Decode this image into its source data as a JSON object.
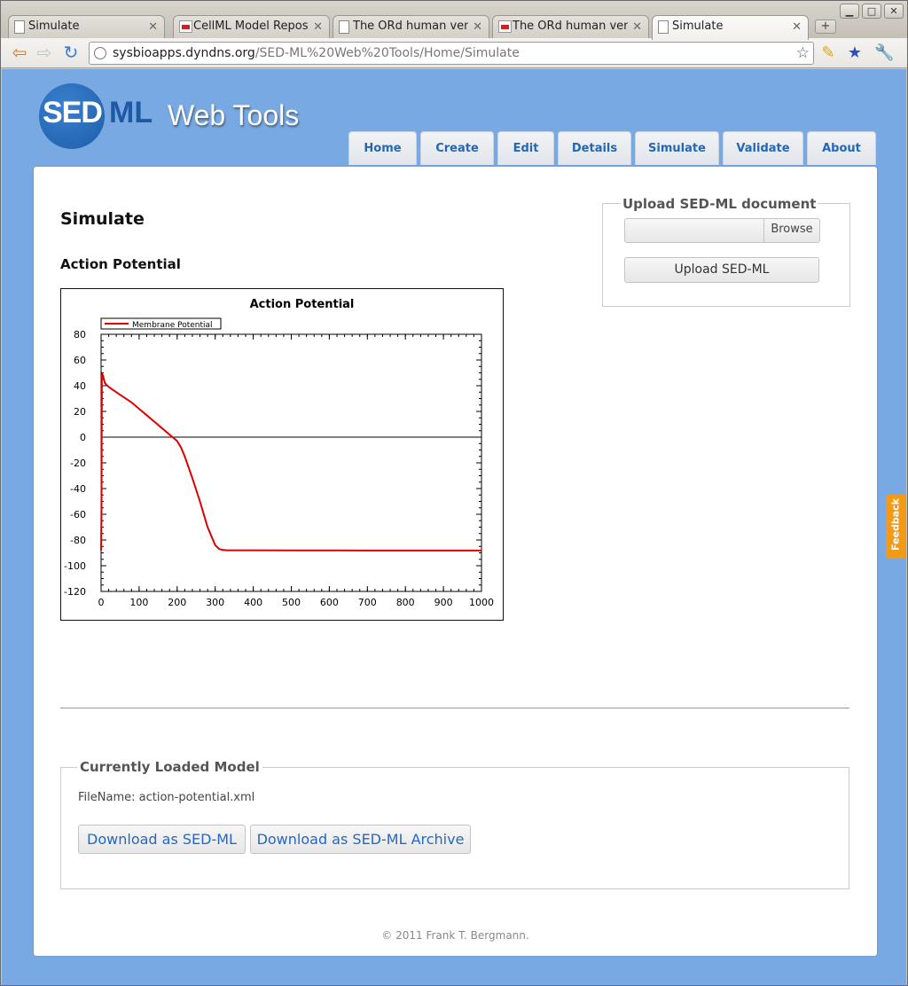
{
  "browser": {
    "tabs": [
      {
        "title": "Simulate",
        "icon": "page-icon"
      },
      {
        "title": "CellML Model Repository",
        "icon": "cellml-icon"
      },
      {
        "title": "The ORd human ventricular",
        "icon": "page-icon"
      },
      {
        "title": "The ORd human ventricular",
        "icon": "cellml-icon"
      },
      {
        "title": "Simulate",
        "icon": "page-icon"
      }
    ],
    "new_tab_label": "+",
    "address": {
      "host": "sysbioapps.dyndns.org",
      "path": "/SED-ML%20Web%20Tools/Home/Simulate"
    }
  },
  "site": {
    "logo_sed": "SED",
    "logo_ml": "ML",
    "logo_webtools": "Web Tools",
    "nav": [
      {
        "label": "Home"
      },
      {
        "label": "Create"
      },
      {
        "label": "Edit"
      },
      {
        "label": "Details"
      },
      {
        "label": "Simulate"
      },
      {
        "label": "Validate"
      },
      {
        "label": "About"
      }
    ]
  },
  "main": {
    "page_title": "Simulate",
    "chart_heading": "Action Potential"
  },
  "upload": {
    "legend": "Upload SED-ML document",
    "browse_label": "Browse",
    "button_label": "Upload SED-ML"
  },
  "model": {
    "legend": "Currently Loaded Model",
    "filename_label": "FileName:",
    "filename": "action-potential.xml",
    "download_sedml": "Download as SED-ML",
    "download_archive": "Download as SED-ML Archive"
  },
  "footer": "© 2011 Frank T. Bergmann.",
  "feedback_label": "Feedback",
  "colors": {
    "background": "#79a9e3",
    "nav_text": "#2467b4",
    "series": "#dd0000",
    "feedback": "#f39b16"
  },
  "chart_data": {
    "type": "line",
    "title": "Action Potential",
    "xlabel": "",
    "ylabel": "",
    "xlim": [
      0,
      1000
    ],
    "ylim": [
      -120,
      80
    ],
    "xticks": [
      0,
      100,
      200,
      300,
      400,
      500,
      600,
      700,
      800,
      900,
      1000
    ],
    "yticks": [
      80,
      60,
      40,
      20,
      0,
      -20,
      -40,
      -60,
      -80,
      -100,
      -120
    ],
    "legend": "top-left",
    "series": [
      {
        "name": "Membrane Potential",
        "color": "#dd0000",
        "x": [
          0,
          1,
          2,
          3,
          5,
          10,
          20,
          40,
          60,
          80,
          100,
          120,
          140,
          160,
          180,
          200,
          210,
          220,
          240,
          260,
          280,
          300,
          310,
          320,
          330,
          350,
          400,
          500,
          600,
          700,
          800,
          900,
          1000
        ],
        "y": [
          -88,
          -60,
          47,
          49,
          48,
          42,
          39,
          35,
          31,
          27,
          22,
          17,
          12,
          7,
          2,
          -3,
          -8,
          -15,
          -32,
          -50,
          -70,
          -84,
          -87,
          -87.8,
          -88,
          -88,
          -88,
          -88.1,
          -88.1,
          -88.2,
          -88.2,
          -88.2,
          -88.2
        ]
      }
    ]
  }
}
